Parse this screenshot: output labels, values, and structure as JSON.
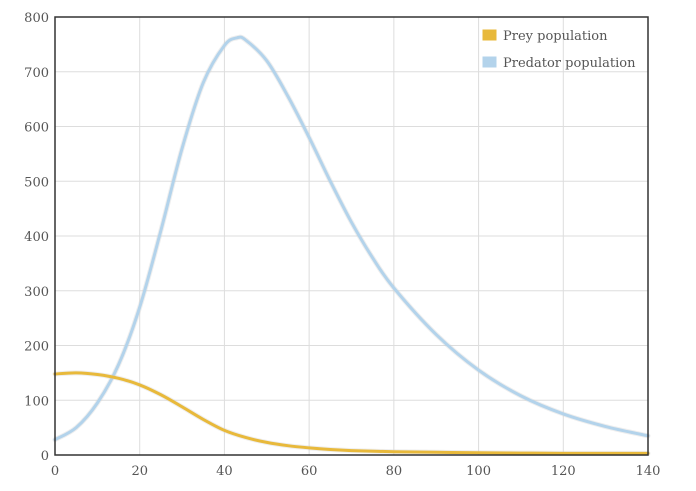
{
  "chart_data": {
    "type": "line",
    "title": "",
    "xlabel": "",
    "ylabel": "",
    "xlim": [
      0,
      140
    ],
    "ylim": [
      0,
      800
    ],
    "xticks": [
      0,
      20,
      40,
      60,
      80,
      100,
      120,
      140
    ],
    "yticks": [
      0,
      100,
      200,
      300,
      400,
      500,
      600,
      700,
      800
    ],
    "grid": true,
    "legend_position": "top-right",
    "series": [
      {
        "name": "Prey population",
        "color": "#e8b93b",
        "x": [
          0,
          5,
          10,
          15,
          20,
          25,
          30,
          35,
          40,
          45,
          50,
          55,
          60,
          65,
          70,
          80,
          90,
          100,
          110,
          120,
          130,
          140
        ],
        "y": [
          148,
          150,
          147,
          140,
          128,
          110,
          88,
          65,
          45,
          32,
          23,
          17,
          13,
          10,
          8,
          6,
          5,
          4,
          3.5,
          3,
          3,
          3
        ]
      },
      {
        "name": "Predator population",
        "color": "#b3d3eb",
        "x": [
          0,
          5,
          10,
          15,
          20,
          25,
          30,
          35,
          40,
          43,
          45,
          50,
          55,
          60,
          65,
          70,
          75,
          80,
          90,
          100,
          110,
          120,
          130,
          140
        ],
        "y": [
          28,
          50,
          95,
          165,
          270,
          410,
          560,
          680,
          748,
          762,
          758,
          720,
          655,
          580,
          500,
          425,
          360,
          305,
          220,
          155,
          108,
          75,
          52,
          35
        ]
      }
    ]
  }
}
